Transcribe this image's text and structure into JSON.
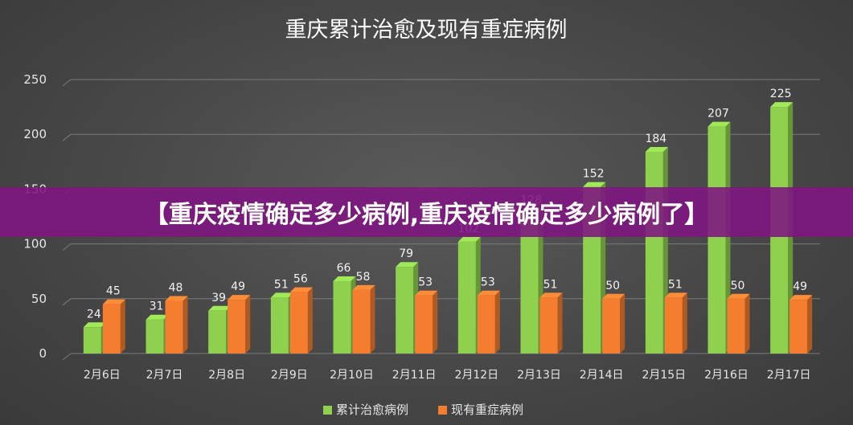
{
  "chart_data": {
    "type": "bar",
    "title": "重庆累计治愈及现有重症病例",
    "categories": [
      "2月6日",
      "2月7日",
      "2月8日",
      "2月9日",
      "2月10日",
      "2月11日",
      "2月12日",
      "2月13日",
      "2月14日",
      "2月15日",
      "2月16日",
      "2月17日"
    ],
    "series": [
      {
        "name": "累计治愈病例",
        "values": [
          24,
          31,
          39,
          51,
          66,
          79,
          102,
          128,
          152,
          184,
          207,
          225
        ],
        "color": "#8fd14f"
      },
      {
        "name": "现有重症病例",
        "values": [
          45,
          48,
          49,
          56,
          58,
          53,
          53,
          51,
          50,
          51,
          50,
          49
        ],
        "color": "#f47d30"
      }
    ],
    "ylim": [
      0,
      250
    ],
    "yticks": [
      0,
      50,
      100,
      150,
      200,
      250
    ],
    "grid": true,
    "legend_position": "bottom"
  },
  "banner": {
    "text": "【重庆疫情确定多少病例,重庆疫情确定多少病例了】"
  }
}
